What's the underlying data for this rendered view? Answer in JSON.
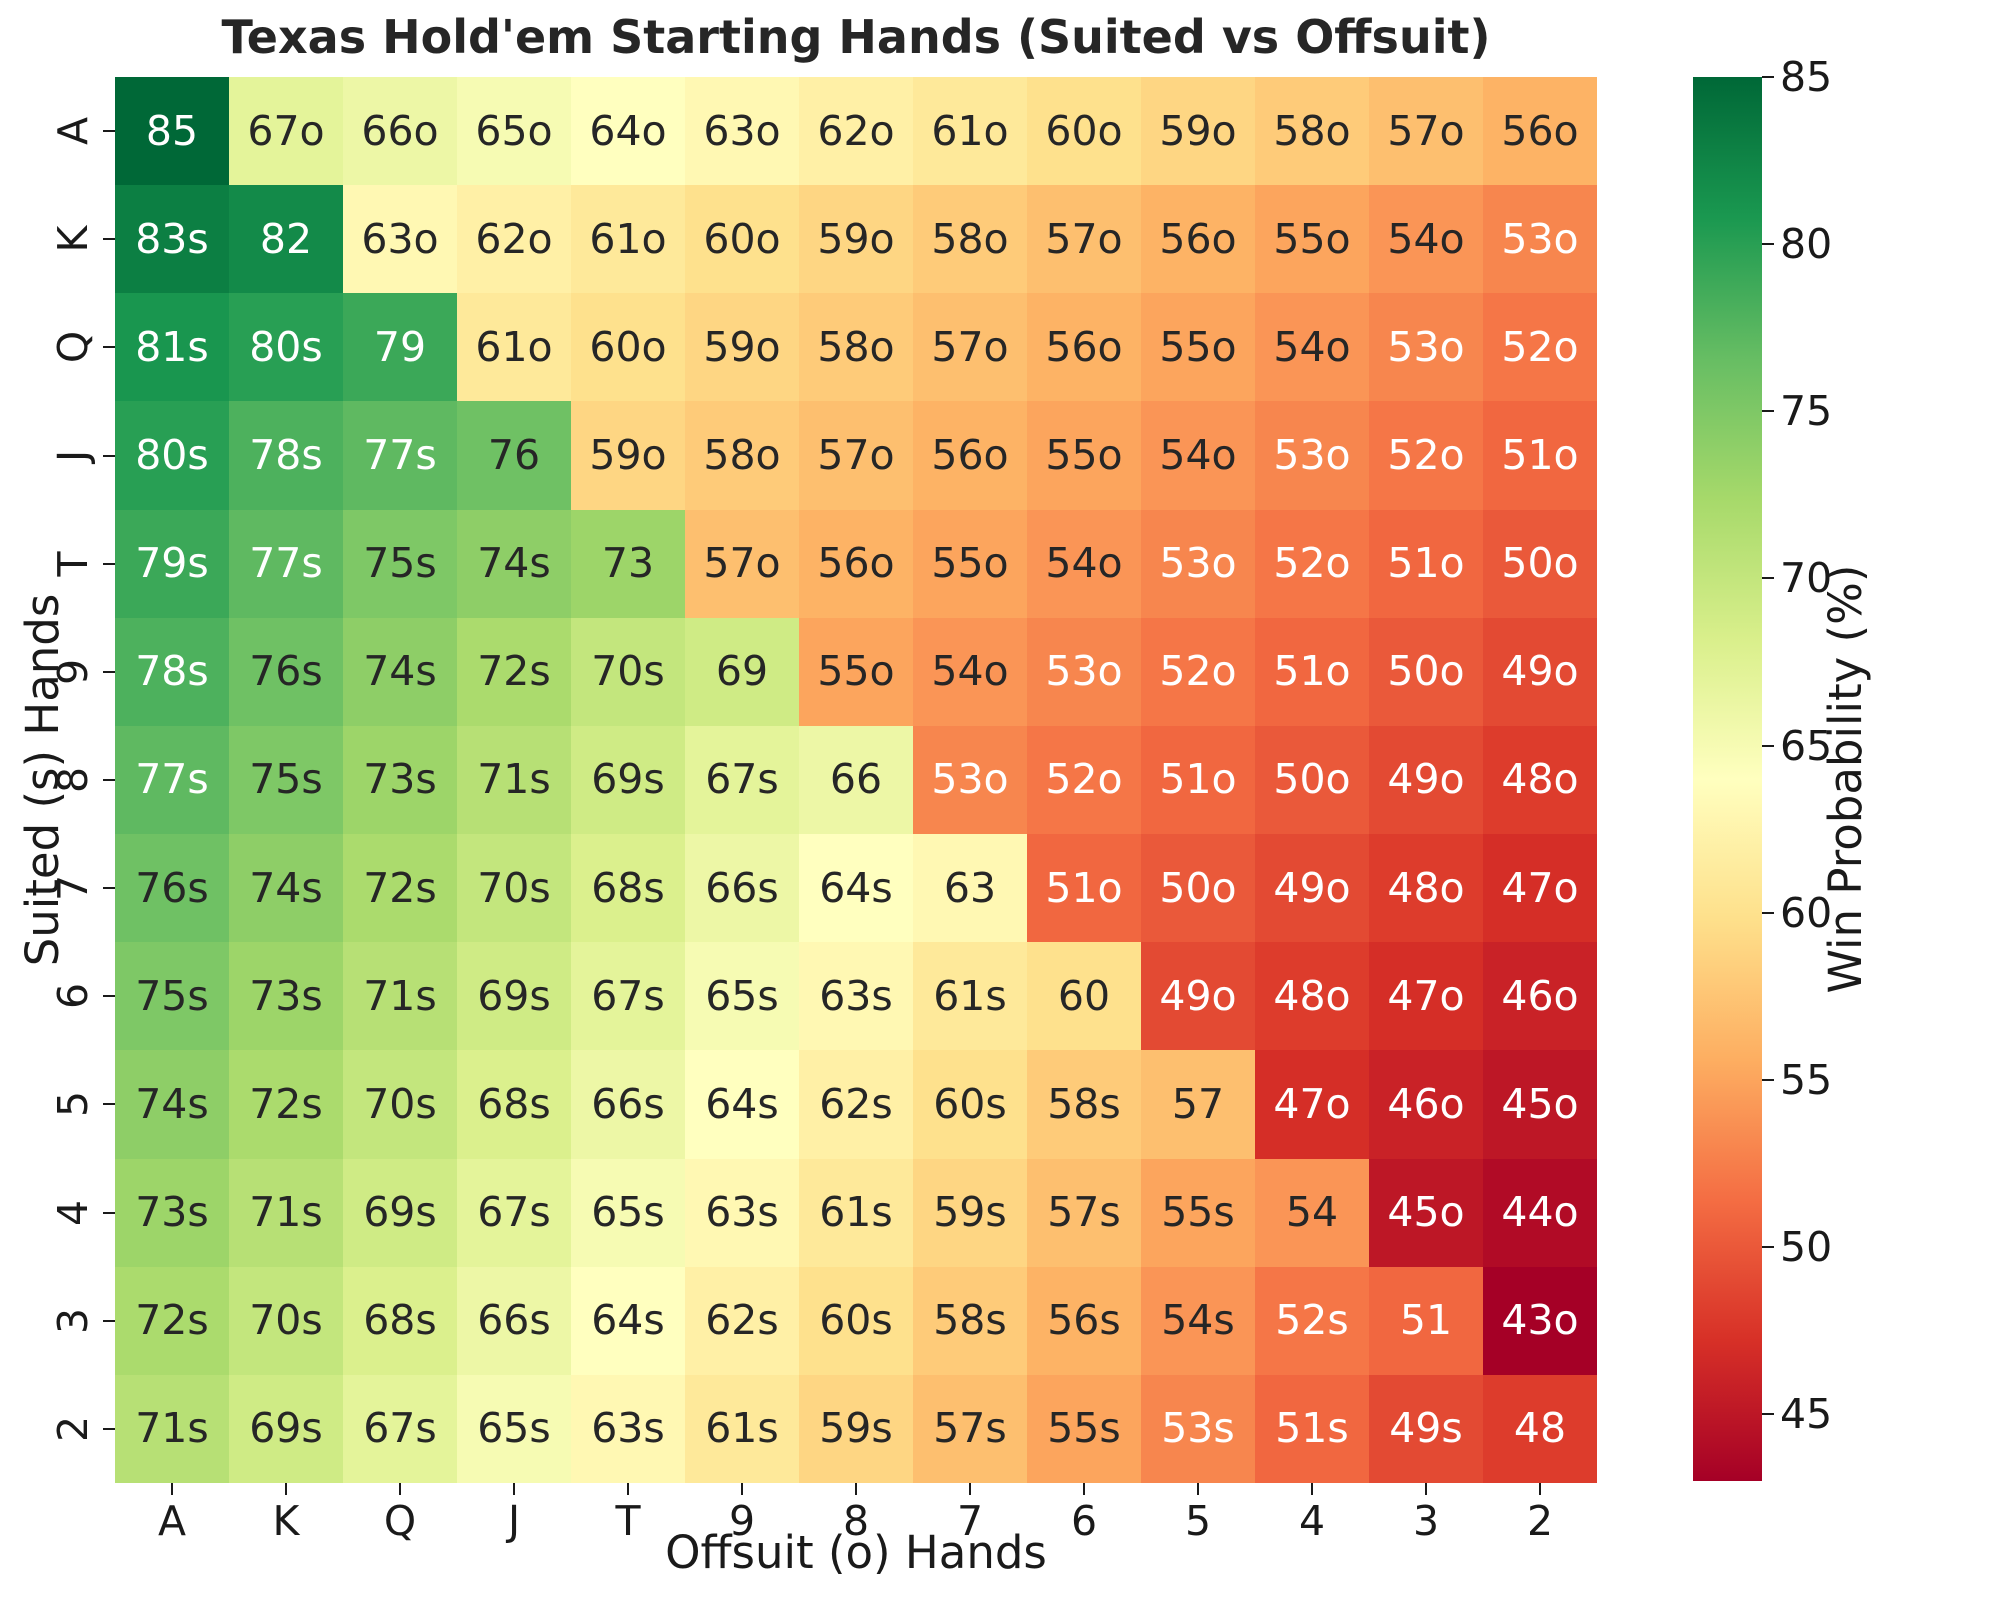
{
  "title": "Texas Hold'em Starting Hands (Suited vs Offsuit)",
  "x_axis": {
    "label": "Offsuit (o) Hands",
    "ticks": [
      "A",
      "K",
      "Q",
      "J",
      "T",
      "9",
      "8",
      "7",
      "6",
      "5",
      "4",
      "3",
      "2"
    ]
  },
  "y_axis": {
    "label": "Suited (s) Hands",
    "ticks": [
      "A",
      "K",
      "Q",
      "J",
      "T",
      "9",
      "8",
      "7",
      "6",
      "5",
      "4",
      "3",
      "2"
    ]
  },
  "colorbar": {
    "label": "Win Probability (%)",
    "tick_values": [
      85,
      80,
      75,
      70,
      65,
      60,
      55,
      50,
      45
    ],
    "vmin": 43,
    "vmax": 85,
    "colormap_name": "RdYlGn",
    "colormap_stops": [
      "#a50026",
      "#d73027",
      "#f46d43",
      "#fdae61",
      "#fee08b",
      "#ffffbf",
      "#d9ef8b",
      "#a6d96a",
      "#66bd63",
      "#1a9850",
      "#006837"
    ]
  },
  "text_colors": {
    "dark": "#262626",
    "light": "#ffffff"
  },
  "chart_data": {
    "type": "heatmap",
    "title": "Texas Hold'em Starting Hands (Suited vs Offsuit)",
    "xlabel": "Offsuit (o) Hands",
    "ylabel": "Suited (s) Hands",
    "colorbar_label": "Win Probability (%)",
    "rows": [
      "A",
      "K",
      "Q",
      "J",
      "T",
      "9",
      "8",
      "7",
      "6",
      "5",
      "4",
      "3",
      "2"
    ],
    "cols": [
      "A",
      "K",
      "Q",
      "J",
      "T",
      "9",
      "8",
      "7",
      "6",
      "5",
      "4",
      "3",
      "2"
    ],
    "value_range": [
      43,
      85
    ],
    "labels": [
      [
        "85",
        "67o",
        "66o",
        "65o",
        "64o",
        "63o",
        "62o",
        "61o",
        "60o",
        "59o",
        "58o",
        "57o",
        "56o"
      ],
      [
        "83s",
        "82",
        "63o",
        "62o",
        "61o",
        "60o",
        "59o",
        "58o",
        "57o",
        "56o",
        "55o",
        "54o",
        "53o"
      ],
      [
        "81s",
        "80s",
        "79",
        "61o",
        "60o",
        "59o",
        "58o",
        "57o",
        "56o",
        "55o",
        "54o",
        "53o",
        "52o"
      ],
      [
        "80s",
        "78s",
        "77s",
        "76",
        "59o",
        "58o",
        "57o",
        "56o",
        "55o",
        "54o",
        "53o",
        "52o",
        "51o"
      ],
      [
        "79s",
        "77s",
        "75s",
        "74s",
        "73",
        "57o",
        "56o",
        "55o",
        "54o",
        "53o",
        "52o",
        "51o",
        "50o"
      ],
      [
        "78s",
        "76s",
        "74s",
        "72s",
        "70s",
        "69",
        "55o",
        "54o",
        "53o",
        "52o",
        "51o",
        "50o",
        "49o"
      ],
      [
        "77s",
        "75s",
        "73s",
        "71s",
        "69s",
        "67s",
        "66",
        "53o",
        "52o",
        "51o",
        "50o",
        "49o",
        "48o"
      ],
      [
        "76s",
        "74s",
        "72s",
        "70s",
        "68s",
        "66s",
        "64s",
        "63",
        "51o",
        "50o",
        "49o",
        "48o",
        "47o"
      ],
      [
        "75s",
        "73s",
        "71s",
        "69s",
        "67s",
        "65s",
        "63s",
        "61s",
        "60",
        "49o",
        "48o",
        "47o",
        "46o"
      ],
      [
        "74s",
        "72s",
        "70s",
        "68s",
        "66s",
        "64s",
        "62s",
        "60s",
        "58s",
        "57",
        "47o",
        "46o",
        "45o"
      ],
      [
        "73s",
        "71s",
        "69s",
        "67s",
        "65s",
        "63s",
        "61s",
        "59s",
        "57s",
        "55s",
        "54",
        "45o",
        "44o"
      ],
      [
        "72s",
        "70s",
        "68s",
        "66s",
        "64s",
        "62s",
        "60s",
        "58s",
        "56s",
        "54s",
        "52s",
        "51",
        "43o"
      ],
      [
        "71s",
        "69s",
        "67s",
        "65s",
        "63s",
        "61s",
        "59s",
        "57s",
        "55s",
        "53s",
        "51s",
        "49s",
        "48"
      ]
    ],
    "values": [
      [
        85,
        67,
        66,
        65,
        64,
        63,
        62,
        61,
        60,
        59,
        58,
        57,
        56
      ],
      [
        83,
        82,
        63,
        62,
        61,
        60,
        59,
        58,
        57,
        56,
        55,
        54,
        53
      ],
      [
        81,
        80,
        79,
        61,
        60,
        59,
        58,
        57,
        56,
        55,
        54,
        53,
        52
      ],
      [
        80,
        78,
        77,
        76,
        59,
        58,
        57,
        56,
        55,
        54,
        53,
        52,
        51
      ],
      [
        79,
        77,
        75,
        74,
        73,
        57,
        56,
        55,
        54,
        53,
        52,
        51,
        50
      ],
      [
        78,
        76,
        74,
        72,
        70,
        69,
        55,
        54,
        53,
        52,
        51,
        50,
        49
      ],
      [
        77,
        75,
        73,
        71,
        69,
        67,
        66,
        53,
        52,
        51,
        50,
        49,
        48
      ],
      [
        76,
        74,
        72,
        70,
        68,
        66,
        64,
        63,
        51,
        50,
        49,
        48,
        47
      ],
      [
        75,
        73,
        71,
        69,
        67,
        65,
        63,
        61,
        60,
        49,
        48,
        47,
        46
      ],
      [
        74,
        72,
        70,
        68,
        66,
        64,
        62,
        60,
        58,
        57,
        47,
        46,
        45
      ],
      [
        73,
        71,
        69,
        67,
        65,
        63,
        61,
        59,
        57,
        55,
        54,
        45,
        44
      ],
      [
        72,
        70,
        68,
        66,
        64,
        62,
        60,
        58,
        56,
        54,
        52,
        51,
        43
      ],
      [
        71,
        69,
        67,
        65,
        63,
        61,
        59,
        57,
        55,
        53,
        51,
        49,
        48
      ]
    ]
  }
}
